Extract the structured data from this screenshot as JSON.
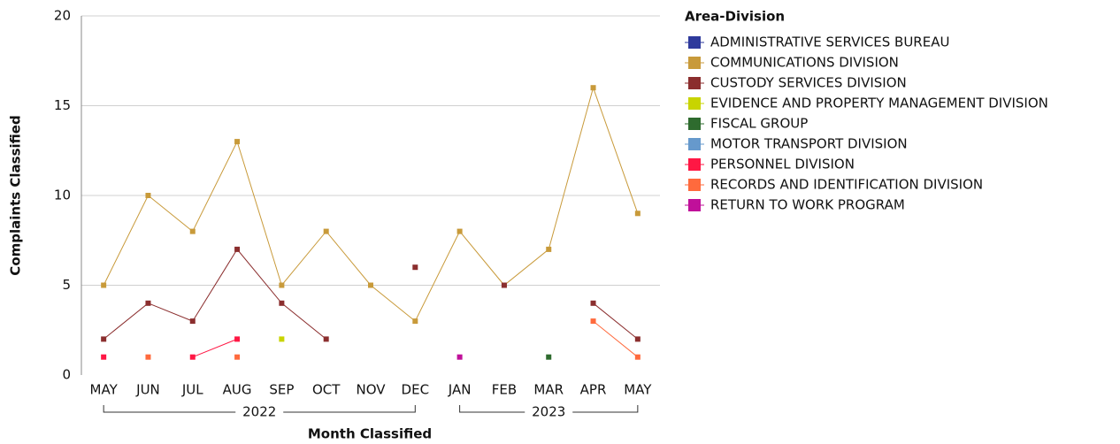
{
  "chart_data": {
    "type": "line",
    "x_label": "Month Classified",
    "y_label": "Complaints Classified",
    "legend_title": "Area-Division",
    "categories": [
      "MAY",
      "JUN",
      "JUL",
      "AUG",
      "SEP",
      "OCT",
      "NOV",
      "DEC",
      "JAN",
      "FEB",
      "MAR",
      "APR",
      "MAY"
    ],
    "category_groups": [
      {
        "label": "2022",
        "count": 8
      },
      {
        "label": "2023",
        "count": 5
      }
    ],
    "ylim": [
      0,
      20
    ],
    "yticks": [
      0,
      5,
      10,
      15,
      20
    ],
    "grid": true,
    "legend": "right",
    "series": [
      {
        "name": "ADMINISTRATIVE SERVICES BUREAU",
        "color": "#2e3a9c",
        "values": [
          null,
          null,
          null,
          null,
          null,
          null,
          null,
          null,
          null,
          null,
          null,
          null,
          null
        ]
      },
      {
        "name": "COMMUNICATIONS DIVISION",
        "color": "#c89a3a",
        "values": [
          5,
          10,
          8,
          13,
          5,
          8,
          5,
          3,
          8,
          5,
          7,
          16,
          9
        ]
      },
      {
        "name": "CUSTODY SERVICES DIVISION",
        "color": "#8b2e2e",
        "values": [
          2,
          4,
          3,
          7,
          4,
          2,
          null,
          6,
          null,
          5,
          null,
          4,
          2
        ]
      },
      {
        "name": "EVIDENCE AND PROPERTY MANAGEMENT DIVISION",
        "color": "#c8d400",
        "values": [
          null,
          null,
          null,
          null,
          2,
          null,
          null,
          null,
          null,
          null,
          null,
          null,
          null
        ]
      },
      {
        "name": "FISCAL GROUP",
        "color": "#2e6b2e",
        "values": [
          null,
          null,
          null,
          null,
          null,
          null,
          null,
          null,
          null,
          null,
          1,
          null,
          null
        ]
      },
      {
        "name": "MOTOR TRANSPORT DIVISION",
        "color": "#6699cc",
        "values": [
          null,
          null,
          null,
          null,
          null,
          null,
          null,
          null,
          null,
          null,
          null,
          null,
          null
        ]
      },
      {
        "name": "PERSONNEL DIVISION",
        "color": "#ff1744",
        "values": [
          1,
          null,
          1,
          2,
          null,
          null,
          null,
          null,
          null,
          null,
          null,
          null,
          null
        ]
      },
      {
        "name": "RECORDS AND IDENTIFICATION DIVISION",
        "color": "#ff6a3d",
        "values": [
          null,
          1,
          null,
          1,
          null,
          null,
          null,
          null,
          null,
          null,
          null,
          3,
          1
        ]
      },
      {
        "name": "RETURN TO WORK PROGRAM",
        "color": "#c0109a",
        "values": [
          null,
          null,
          null,
          null,
          null,
          null,
          null,
          null,
          1,
          null,
          null,
          null,
          null
        ]
      }
    ]
  }
}
